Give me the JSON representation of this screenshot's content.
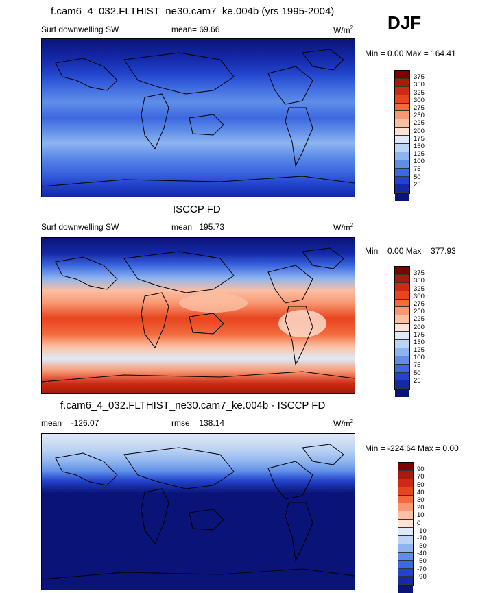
{
  "season": "DJF",
  "panels": [
    {
      "title": "f.cam6_4_032.FLTHIST_ne30.cam7_ke.004b (yrs 1995-2004)",
      "left_label": "Surf downwelling SW",
      "mid_label": "mean=  69.66",
      "units_base": "W/m",
      "units_sup": "2",
      "minmax": "Min =   0.00 Max = 164.41"
    },
    {
      "title": "ISCCP FD",
      "left_label": "Surf downwelling SW",
      "mid_label": "mean= 195.73",
      "units_base": "W/m",
      "units_sup": "2",
      "minmax": "Min =   0.00 Max = 377.93"
    },
    {
      "title": "f.cam6_4_032.FLTHIST_ne30.cam7_ke.004b - ISCCP FD",
      "left_label": "mean = -126.07",
      "mid_label": "rmse = 138.14",
      "units_base": "W/m",
      "units_sup": "2",
      "minmax": "Min = -224.64 Max =   0.00"
    }
  ],
  "colorbar_abs": {
    "labels": [
      "375",
      "350",
      "325",
      "300",
      "275",
      "250",
      "225",
      "200",
      "175",
      "150",
      "125",
      "100",
      "75",
      "50",
      "25"
    ],
    "colors": [
      "#7f0000",
      "#a81a0e",
      "#cc2a14",
      "#e8441e",
      "#f36a3c",
      "#f89872",
      "#fbbfa2",
      "#fde3d4",
      "#dfe9f8",
      "#bcd3f3",
      "#8eb4ef",
      "#5f8ee8",
      "#3c68e0",
      "#2244cc",
      "#1428a8",
      "#0a1478"
    ]
  },
  "colorbar_diff": {
    "labels": [
      "90",
      "70",
      "50",
      "40",
      "30",
      "20",
      "10",
      "0",
      "-10",
      "-20",
      "-30",
      "-40",
      "-50",
      "-70",
      "-90"
    ],
    "colors": [
      "#7f0000",
      "#a81a0e",
      "#cc2a14",
      "#e8441e",
      "#f36a3c",
      "#f89872",
      "#fbbfa2",
      "#fde3d4",
      "#dfe9f8",
      "#bcd3f3",
      "#8eb4ef",
      "#5f8ee8",
      "#3c68e0",
      "#2244cc",
      "#1428a8",
      "#0a1478"
    ]
  },
  "chart_data": [
    {
      "type": "heatmap",
      "title": "f.cam6_4_032.FLTHIST_ne30.cam7_ke.004b (yrs 1995-2004)",
      "variable": "Surf downwelling SW",
      "units": "W/m2",
      "mean": 69.66,
      "min": 0.0,
      "max": 164.41,
      "contour_levels": [
        25,
        50,
        75,
        100,
        125,
        150,
        175,
        200,
        225,
        250,
        275,
        300,
        325,
        350,
        375
      ]
    },
    {
      "type": "heatmap",
      "title": "ISCCP FD",
      "variable": "Surf downwelling SW",
      "units": "W/m2",
      "mean": 195.73,
      "min": 0.0,
      "max": 377.93,
      "contour_levels": [
        25,
        50,
        75,
        100,
        125,
        150,
        175,
        200,
        225,
        250,
        275,
        300,
        325,
        350,
        375
      ]
    },
    {
      "type": "heatmap",
      "title": "f.cam6_4_032.FLTHIST_ne30.cam7_ke.004b - ISCCP FD",
      "units": "W/m2",
      "mean": -126.07,
      "rmse": 138.14,
      "min": -224.64,
      "max": 0.0,
      "contour_levels": [
        -90,
        -70,
        -50,
        -40,
        -30,
        -20,
        -10,
        0,
        10,
        20,
        30,
        40,
        50,
        70,
        90
      ]
    }
  ]
}
